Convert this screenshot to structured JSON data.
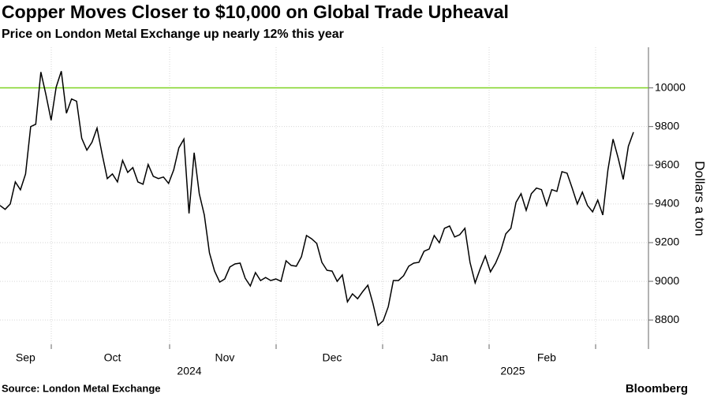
{
  "chart_data": {
    "type": "line",
    "title": "Copper Moves Closer to $10,000 on Global Trade Upheaval",
    "subtitle": "Price on London Metal Exchange up nearly 12% this year",
    "ylabel": "Dollars a ton",
    "source": "Source: London Metal Exchange",
    "brand": "Bloomberg",
    "years": [
      "2024",
      "2025"
    ],
    "ylim": [
      8650,
      10210
    ],
    "yticks": [
      8800,
      9000,
      9200,
      9400,
      9600,
      9800,
      10000
    ],
    "grid": true,
    "reference_line": {
      "value": 10000,
      "color": "#7ed321"
    },
    "categories": [
      null,
      null,
      null,
      null,
      null,
      "Sep",
      null,
      null,
      null,
      null,
      null,
      null,
      null,
      null,
      null,
      null,
      null,
      null,
      null,
      null,
      null,
      null,
      "Oct",
      null,
      null,
      null,
      null,
      null,
      null,
      null,
      null,
      null,
      null,
      null,
      null,
      null,
      null,
      null,
      null,
      null,
      null,
      null,
      null,
      null,
      "Nov",
      null,
      null,
      null,
      null,
      null,
      null,
      null,
      null,
      null,
      null,
      null,
      null,
      null,
      null,
      null,
      null,
      null,
      null,
      null,
      null,
      "Dec",
      null,
      null,
      null,
      null,
      null,
      null,
      null,
      null,
      null,
      null,
      null,
      null,
      null,
      null,
      null,
      null,
      null,
      null,
      null,
      null,
      "Jan",
      null,
      null,
      null,
      null,
      null,
      null,
      null,
      null,
      null,
      null,
      null,
      null,
      null,
      null,
      null,
      null,
      null,
      null,
      null,
      null,
      "Feb",
      null,
      null,
      null,
      null,
      null,
      null,
      null,
      null,
      null,
      null,
      null,
      null,
      null,
      null,
      null,
      null,
      null
    ],
    "series": [
      {
        "name": "Copper",
        "color": "#000000",
        "values": [
          9392,
          9372,
          9400,
          9514,
          9473,
          9555,
          9800,
          9812,
          10082,
          9963,
          9833,
          10004,
          10086,
          9869,
          9943,
          9931,
          9739,
          9678,
          9719,
          9792,
          9657,
          9531,
          9555,
          9514,
          9625,
          9563,
          9588,
          9514,
          9502,
          9604,
          9543,
          9531,
          9539,
          9506,
          9576,
          9690,
          9735,
          9351,
          9665,
          9453,
          9343,
          9147,
          9053,
          8996,
          9012,
          9074,
          9090,
          9094,
          9016,
          8976,
          9045,
          9004,
          9020,
          9004,
          9012,
          9000,
          9106,
          9082,
          9078,
          9127,
          9237,
          9220,
          9196,
          9098,
          9057,
          9053,
          9000,
          9033,
          8894,
          8935,
          8910,
          8947,
          8980,
          8886,
          8772,
          8796,
          8869,
          9004,
          9004,
          9029,
          9078,
          9094,
          9098,
          9155,
          9167,
          9237,
          9200,
          9274,
          9286,
          9229,
          9241,
          9274,
          9098,
          8992,
          9065,
          9131,
          9049,
          9094,
          9155,
          9245,
          9274,
          9408,
          9453,
          9367,
          9453,
          9482,
          9474,
          9392,
          9474,
          9465,
          9567,
          9559,
          9482,
          9400,
          9461,
          9392,
          9359,
          9420,
          9343,
          9576,
          9735,
          9637,
          9527,
          9698,
          9771
        ]
      }
    ]
  }
}
